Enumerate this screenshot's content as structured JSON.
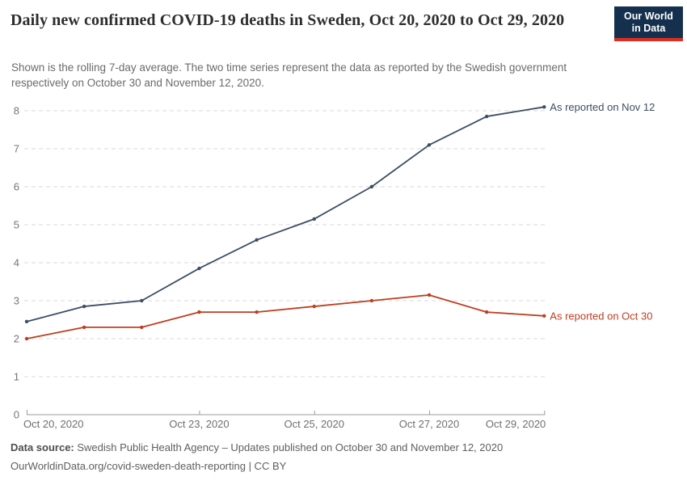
{
  "header": {
    "title": "Daily new confirmed COVID-19 deaths in Sweden, Oct 20, 2020 to Oct 29, 2020",
    "subtitle": "Shown is the rolling 7-day average. The two time series represent the data as reported by the Swedish government respectively on October 30 and November 12, 2020.",
    "logo_line1": "Our World",
    "logo_line2": "in Data",
    "logo_bg_color": "#15304e",
    "logo_stripe_color": "#dd2c20"
  },
  "chart_data": {
    "type": "line",
    "title": "Daily new confirmed COVID-19 deaths in Sweden, Oct 20, 2020 to Oct 29, 2020",
    "xlabel": "",
    "ylabel": "",
    "x": [
      "Oct 20, 2020",
      "Oct 21, 2020",
      "Oct 22, 2020",
      "Oct 23, 2020",
      "Oct 24, 2020",
      "Oct 25, 2020",
      "Oct 26, 2020",
      "Oct 27, 2020",
      "Oct 28, 2020",
      "Oct 29, 2020"
    ],
    "series": [
      {
        "name": "As reported on Nov 12",
        "color": "#3c4e66",
        "values": [
          2.45,
          2.85,
          3.0,
          3.85,
          4.6,
          5.15,
          6.0,
          7.1,
          7.85,
          8.1
        ]
      },
      {
        "name": "As reported on Oct 30",
        "color": "#bf3e1f",
        "values": [
          2.0,
          2.3,
          2.3,
          2.7,
          2.7,
          2.85,
          3.0,
          3.15,
          2.7,
          2.6
        ]
      }
    ],
    "ylim": [
      0,
      8
    ],
    "y_ticks": [
      0,
      1,
      2,
      3,
      4,
      5,
      6,
      7,
      8
    ],
    "x_tick_indices": [
      0,
      3,
      5,
      7,
      9
    ],
    "grid": "dashed horizontal",
    "legend_position": "labels at line ends",
    "grid_color": "#dadada",
    "axis_color": "#9b9b9b",
    "tick_label_color": "#757575"
  },
  "footer": {
    "source_label": "Data source:",
    "source_text": " Swedish Public Health Agency – Updates published on October 30 and November 12, 2020",
    "link_line": "OurWorldinData.org/covid-sweden-death-reporting | CC BY"
  }
}
